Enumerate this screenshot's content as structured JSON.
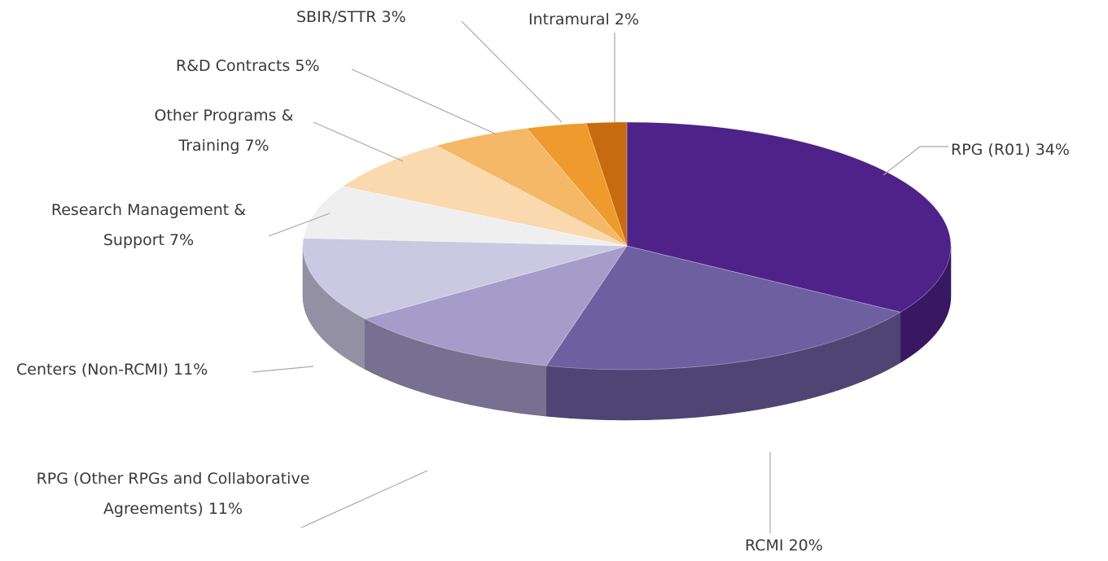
{
  "chart_data": {
    "type": "pie",
    "three_d": true,
    "categories": [
      "RPG (R01)",
      "RCMI",
      "RPG (Other RPGs and Collaborative Agreements)",
      "Centers (Non-RCMI)",
      "Research Management & Support",
      "Other Programs & Training",
      "R&D Contracts",
      "SBIR/STTR",
      "Intramural"
    ],
    "values": [
      34,
      20,
      11,
      11,
      7,
      7,
      5,
      3,
      2
    ],
    "value_labels": [
      "34%",
      "20%",
      "11%",
      "11%",
      "7%",
      "7%",
      "5%",
      "3%",
      "2%"
    ],
    "colors": [
      "#4e2289",
      "#6e5fa0",
      "#a59cc9",
      "#cbc8e1",
      "#efefef",
      "#fbd9ae",
      "#f5b866",
      "#ee9a2c",
      "#c66b0e"
    ]
  }
}
